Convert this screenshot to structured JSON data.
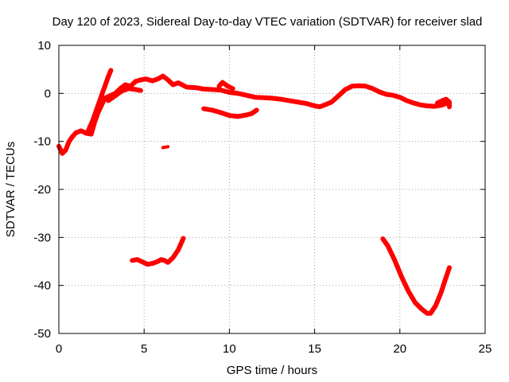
{
  "chart_data": {
    "type": "line",
    "title": "Day 120 of 2023, Sidereal Day-to-day VTEC variation (SDTVAR) for receiver slad",
    "xlabel": "GPS time / hours",
    "ylabel": "SDTVAR / TECUs",
    "xlim": [
      0,
      25
    ],
    "ylim": [
      -50,
      10
    ],
    "xticks": [
      0,
      5,
      10,
      15,
      20,
      25
    ],
    "yticks": [
      -50,
      -40,
      -30,
      -20,
      -10,
      0,
      10
    ],
    "grid": true,
    "color": "#ff0000",
    "series": [
      {
        "name": "main",
        "points": [
          [
            0.0,
            -11.0
          ],
          [
            0.2,
            -12.5
          ],
          [
            0.4,
            -11.8
          ],
          [
            0.6,
            -10.0
          ],
          [
            0.8,
            -9.0
          ],
          [
            1.0,
            -8.2
          ],
          [
            1.3,
            -7.8
          ],
          [
            1.6,
            -8.3
          ],
          [
            1.9,
            -8.5
          ],
          [
            2.1,
            -6.0
          ],
          [
            2.3,
            -4.0
          ],
          [
            2.5,
            -2.5
          ],
          [
            2.7,
            -1.0
          ],
          [
            3.0,
            -0.5
          ],
          [
            3.3,
            0.0
          ],
          [
            3.6,
            1.0
          ],
          [
            3.9,
            1.8
          ],
          [
            4.2,
            1.5
          ],
          [
            4.5,
            2.5
          ],
          [
            4.8,
            2.8
          ],
          [
            5.1,
            3.0
          ],
          [
            5.5,
            2.6
          ],
          [
            5.8,
            3.0
          ],
          [
            6.1,
            3.6
          ],
          [
            6.4,
            2.8
          ],
          [
            6.7,
            1.8
          ],
          [
            7.0,
            2.2
          ],
          [
            7.5,
            1.3
          ],
          [
            8.0,
            1.2
          ],
          [
            8.5,
            0.9
          ],
          [
            9.0,
            0.8
          ],
          [
            9.5,
            0.7
          ],
          [
            10.0,
            0.2
          ],
          [
            10.5,
            0.0
          ],
          [
            11.0,
            -0.4
          ],
          [
            11.5,
            -0.8
          ],
          [
            12.0,
            -0.9
          ],
          [
            12.5,
            -1.0
          ],
          [
            13.0,
            -1.2
          ],
          [
            13.5,
            -1.5
          ],
          [
            14.0,
            -1.8
          ],
          [
            14.5,
            -2.1
          ],
          [
            15.0,
            -2.6
          ],
          [
            15.3,
            -2.8
          ],
          [
            15.6,
            -2.4
          ],
          [
            16.0,
            -1.8
          ],
          [
            16.4,
            -0.5
          ],
          [
            16.8,
            0.8
          ],
          [
            17.2,
            1.5
          ],
          [
            17.6,
            1.6
          ],
          [
            18.0,
            1.5
          ],
          [
            18.4,
            1.0
          ],
          [
            18.8,
            0.3
          ],
          [
            19.2,
            -0.2
          ],
          [
            19.6,
            -0.4
          ],
          [
            20.0,
            -0.8
          ],
          [
            20.4,
            -1.5
          ],
          [
            20.8,
            -2.0
          ],
          [
            21.2,
            -2.4
          ],
          [
            21.6,
            -2.6
          ],
          [
            22.0,
            -2.7
          ],
          [
            22.4,
            -2.5
          ],
          [
            22.8,
            -2.0
          ]
        ]
      },
      {
        "name": "rise-spike",
        "points": [
          [
            1.7,
            -8.0
          ],
          [
            2.0,
            -5.5
          ],
          [
            2.3,
            -2.5
          ],
          [
            2.6,
            0.5
          ],
          [
            2.9,
            3.5
          ],
          [
            3.05,
            4.8
          ]
        ]
      },
      {
        "name": "morning-branch",
        "points": [
          [
            2.9,
            -1.5
          ],
          [
            3.3,
            -0.5
          ],
          [
            3.7,
            0.5
          ],
          [
            4.1,
            1.0
          ],
          [
            4.5,
            0.8
          ],
          [
            4.8,
            0.6
          ]
        ]
      },
      {
        "name": "mid-dip",
        "points": [
          [
            8.5,
            -3.2
          ],
          [
            9.0,
            -3.5
          ],
          [
            9.5,
            -4.0
          ],
          [
            10.0,
            -4.6
          ],
          [
            10.5,
            -4.8
          ],
          [
            11.0,
            -4.5
          ],
          [
            11.3,
            -4.2
          ],
          [
            11.6,
            -3.5
          ]
        ]
      },
      {
        "name": "spike-9.5",
        "points": [
          [
            9.4,
            1.5
          ],
          [
            9.6,
            2.3
          ],
          [
            9.9,
            1.5
          ],
          [
            10.2,
            1.0
          ]
        ]
      },
      {
        "name": "late-spike",
        "points": [
          [
            22.2,
            -2.0
          ],
          [
            22.5,
            -1.5
          ],
          [
            22.7,
            -1.2
          ],
          [
            22.9,
            -1.8
          ],
          [
            22.9,
            -2.8
          ]
        ]
      },
      {
        "name": "dot-6.3",
        "points": [
          [
            6.1,
            -11.3
          ],
          [
            6.4,
            -11.1
          ]
        ]
      },
      {
        "name": "low-arc-1",
        "points": [
          [
            4.3,
            -34.8
          ],
          [
            4.6,
            -34.6
          ],
          [
            4.9,
            -35.1
          ],
          [
            5.2,
            -35.6
          ],
          [
            5.5,
            -35.4
          ],
          [
            5.8,
            -35.0
          ],
          [
            6.0,
            -34.6
          ],
          [
            6.2,
            -34.8
          ],
          [
            6.4,
            -35.2
          ],
          [
            6.7,
            -34.2
          ],
          [
            7.0,
            -32.6
          ],
          [
            7.3,
            -30.2
          ]
        ]
      },
      {
        "name": "low-arc-2",
        "points": [
          [
            19.0,
            -30.3
          ],
          [
            19.3,
            -31.8
          ],
          [
            19.7,
            -34.8
          ],
          [
            20.1,
            -38.2
          ],
          [
            20.5,
            -41.2
          ],
          [
            20.9,
            -43.6
          ],
          [
            21.3,
            -45.0
          ],
          [
            21.6,
            -45.8
          ],
          [
            21.8,
            -45.8
          ],
          [
            22.1,
            -44.2
          ],
          [
            22.4,
            -41.6
          ],
          [
            22.7,
            -38.4
          ],
          [
            22.9,
            -36.3
          ]
        ]
      }
    ]
  }
}
